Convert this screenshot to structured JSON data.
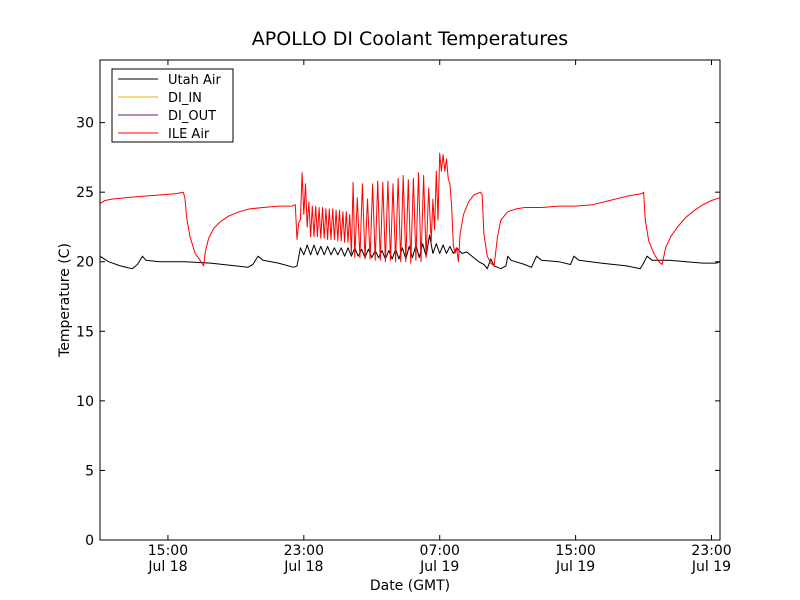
{
  "chart_data": {
    "type": "line",
    "title": "APOLLO DI Coolant Temperatures",
    "xlabel": "Date (GMT)",
    "ylabel": "Temperature (C)",
    "xlim": [
      11.0,
      47.5
    ],
    "ylim": [
      0,
      34.5
    ],
    "y_ticks": [
      0,
      5,
      10,
      15,
      20,
      25,
      30
    ],
    "x_ticks": [
      {
        "x": 15,
        "line1": "15:00",
        "line2": "Jul 18"
      },
      {
        "x": 23,
        "line1": "23:00",
        "line2": "Jul 18"
      },
      {
        "x": 31,
        "line1": "07:00",
        "line2": "Jul 19"
      },
      {
        "x": 39,
        "line1": "15:00",
        "line2": "Jul 19"
      },
      {
        "x": 47,
        "line1": "23:00",
        "line2": "Jul 19"
      }
    ],
    "legend_position": "top-left",
    "series": [
      {
        "name": "Utah Air",
        "color": "#000000",
        "points": [
          [
            11.0,
            20.4
          ],
          [
            11.5,
            20.0
          ],
          [
            12.2,
            19.7
          ],
          [
            12.9,
            19.5
          ],
          [
            13.2,
            19.8
          ],
          [
            13.5,
            20.4
          ],
          [
            13.7,
            20.1
          ],
          [
            14.5,
            20.0
          ],
          [
            16.0,
            20.0
          ],
          [
            17.5,
            19.9
          ],
          [
            19.0,
            19.7
          ],
          [
            19.7,
            19.6
          ],
          [
            20.0,
            19.8
          ],
          [
            20.3,
            20.4
          ],
          [
            20.6,
            20.1
          ],
          [
            21.5,
            19.9
          ],
          [
            22.4,
            19.6
          ],
          [
            22.6,
            19.7
          ],
          [
            22.8,
            21.0
          ],
          [
            23.0,
            20.5
          ],
          [
            23.2,
            21.2
          ],
          [
            23.4,
            20.5
          ],
          [
            23.6,
            21.2
          ],
          [
            23.8,
            20.5
          ],
          [
            24.0,
            21.1
          ],
          [
            24.2,
            20.5
          ],
          [
            24.4,
            21.1
          ],
          [
            24.6,
            20.5
          ],
          [
            24.8,
            21.0
          ],
          [
            25.0,
            20.5
          ],
          [
            25.2,
            21.0
          ],
          [
            25.4,
            20.4
          ],
          [
            25.6,
            21.0
          ],
          [
            25.8,
            20.4
          ],
          [
            26.0,
            21.0
          ],
          [
            26.2,
            20.4
          ],
          [
            26.4,
            20.9
          ],
          [
            26.6,
            20.3
          ],
          [
            26.8,
            20.9
          ],
          [
            27.0,
            20.3
          ],
          [
            27.2,
            20.8
          ],
          [
            27.4,
            20.3
          ],
          [
            27.6,
            20.8
          ],
          [
            27.8,
            20.2
          ],
          [
            28.0,
            20.8
          ],
          [
            28.2,
            20.2
          ],
          [
            28.4,
            20.9
          ],
          [
            28.6,
            20.2
          ],
          [
            28.8,
            21.0
          ],
          [
            29.0,
            20.2
          ],
          [
            29.2,
            21.1
          ],
          [
            29.4,
            20.3
          ],
          [
            29.6,
            21.2
          ],
          [
            29.8,
            20.3
          ],
          [
            30.0,
            21.3
          ],
          [
            30.2,
            20.4
          ],
          [
            30.4,
            21.9
          ],
          [
            30.6,
            20.6
          ],
          [
            30.8,
            21.3
          ],
          [
            31.0,
            20.6
          ],
          [
            31.2,
            21.2
          ],
          [
            31.4,
            20.6
          ],
          [
            31.6,
            21.1
          ],
          [
            31.8,
            20.6
          ],
          [
            32.0,
            21.0
          ],
          [
            32.3,
            20.6
          ],
          [
            32.6,
            20.7
          ],
          [
            32.9,
            20.4
          ],
          [
            33.3,
            20.0
          ],
          [
            33.6,
            19.8
          ],
          [
            33.8,
            19.5
          ],
          [
            34.0,
            20.2
          ],
          [
            34.2,
            19.7
          ],
          [
            34.6,
            19.5
          ],
          [
            34.9,
            19.7
          ],
          [
            35.0,
            20.4
          ],
          [
            35.2,
            20.1
          ],
          [
            36.0,
            19.8
          ],
          [
            36.4,
            19.6
          ],
          [
            36.7,
            20.4
          ],
          [
            37.0,
            20.1
          ],
          [
            38.0,
            20.0
          ],
          [
            38.7,
            19.8
          ],
          [
            38.9,
            20.4
          ],
          [
            39.2,
            20.1
          ],
          [
            40.5,
            19.9
          ],
          [
            42.0,
            19.7
          ],
          [
            42.8,
            19.5
          ],
          [
            43.0,
            19.9
          ],
          [
            43.2,
            20.4
          ],
          [
            43.5,
            20.1
          ],
          [
            44.5,
            20.1
          ],
          [
            45.5,
            20.0
          ],
          [
            46.5,
            19.9
          ],
          [
            47.3,
            19.9
          ],
          [
            47.5,
            20.0
          ]
        ]
      },
      {
        "name": "DI_IN",
        "color": "#f0b400",
        "points": []
      },
      {
        "name": "DI_OUT",
        "color": "#5a1e78",
        "points": []
      },
      {
        "name": "ILE Air",
        "color": "#ff0000",
        "points": [
          [
            11.0,
            24.2
          ],
          [
            11.3,
            24.4
          ],
          [
            11.7,
            24.5
          ],
          [
            12.5,
            24.6
          ],
          [
            13.5,
            24.7
          ],
          [
            14.5,
            24.8
          ],
          [
            15.5,
            24.9
          ],
          [
            15.9,
            25.0
          ],
          [
            16.0,
            24.6
          ],
          [
            16.1,
            23.2
          ],
          [
            16.3,
            21.8
          ],
          [
            16.6,
            20.6
          ],
          [
            16.9,
            20.1
          ],
          [
            17.1,
            19.7
          ],
          [
            17.2,
            20.7
          ],
          [
            17.4,
            21.7
          ],
          [
            17.7,
            22.4
          ],
          [
            18.1,
            22.9
          ],
          [
            18.6,
            23.3
          ],
          [
            19.2,
            23.6
          ],
          [
            19.8,
            23.8
          ],
          [
            20.6,
            23.9
          ],
          [
            21.5,
            24.0
          ],
          [
            22.3,
            24.0
          ],
          [
            22.5,
            24.1
          ],
          [
            22.6,
            21.6
          ],
          [
            22.7,
            22.8
          ],
          [
            22.8,
            23.0
          ],
          [
            22.9,
            26.4
          ],
          [
            23.0,
            23.4
          ],
          [
            23.1,
            25.6
          ],
          [
            23.2,
            22.5
          ],
          [
            23.3,
            24.3
          ],
          [
            23.4,
            21.8
          ],
          [
            23.5,
            24.0
          ],
          [
            23.6,
            21.8
          ],
          [
            23.7,
            24.0
          ],
          [
            23.8,
            21.8
          ],
          [
            23.9,
            23.9
          ],
          [
            24.0,
            21.7
          ],
          [
            24.1,
            23.9
          ],
          [
            24.2,
            21.7
          ],
          [
            24.3,
            23.8
          ],
          [
            24.4,
            21.6
          ],
          [
            24.5,
            23.8
          ],
          [
            24.6,
            21.6
          ],
          [
            24.7,
            23.8
          ],
          [
            24.8,
            21.6
          ],
          [
            24.9,
            23.7
          ],
          [
            25.0,
            21.5
          ],
          [
            25.1,
            23.7
          ],
          [
            25.2,
            21.5
          ],
          [
            25.3,
            23.6
          ],
          [
            25.4,
            21.4
          ],
          [
            25.5,
            23.6
          ],
          [
            25.6,
            21.4
          ],
          [
            25.7,
            23.4
          ],
          [
            25.8,
            20.6
          ],
          [
            25.9,
            25.7
          ],
          [
            26.0,
            20.3
          ],
          [
            26.15,
            24.6
          ],
          [
            26.3,
            20.3
          ],
          [
            26.45,
            25.6
          ],
          [
            26.6,
            20.2
          ],
          [
            26.75,
            24.5
          ],
          [
            26.9,
            20.2
          ],
          [
            27.05,
            25.6
          ],
          [
            27.2,
            20.1
          ],
          [
            27.35,
            25.8
          ],
          [
            27.5,
            20.1
          ],
          [
            27.65,
            25.7
          ],
          [
            27.8,
            20.0
          ],
          [
            27.95,
            25.8
          ],
          [
            28.1,
            20.1
          ],
          [
            28.25,
            25.6
          ],
          [
            28.4,
            20.0
          ],
          [
            28.55,
            26.0
          ],
          [
            28.7,
            20.0
          ],
          [
            28.85,
            26.2
          ],
          [
            29.0,
            20.0
          ],
          [
            29.15,
            25.9
          ],
          [
            29.3,
            19.9
          ],
          [
            29.45,
            26.0
          ],
          [
            29.6,
            20.1
          ],
          [
            29.75,
            26.4
          ],
          [
            29.9,
            20.0
          ],
          [
            30.05,
            26.2
          ],
          [
            30.2,
            20.3
          ],
          [
            30.35,
            25.3
          ],
          [
            30.5,
            21.4
          ],
          [
            30.6,
            24.5
          ],
          [
            30.7,
            22.3
          ],
          [
            30.8,
            26.5
          ],
          [
            30.9,
            23.0
          ],
          [
            31.0,
            27.8
          ],
          [
            31.1,
            26.5
          ],
          [
            31.2,
            27.7
          ],
          [
            31.3,
            26.5
          ],
          [
            31.4,
            27.4
          ],
          [
            31.5,
            26.0
          ],
          [
            31.6,
            25.6
          ],
          [
            31.7,
            24.0
          ],
          [
            31.8,
            21.2
          ],
          [
            31.9,
            20.6
          ],
          [
            32.0,
            21.0
          ],
          [
            32.1,
            20.0
          ],
          [
            32.2,
            22.0
          ],
          [
            32.4,
            23.4
          ],
          [
            32.7,
            24.3
          ],
          [
            33.0,
            24.8
          ],
          [
            33.4,
            25.0
          ],
          [
            33.5,
            24.8
          ],
          [
            33.6,
            22.0
          ],
          [
            33.8,
            20.4
          ],
          [
            34.0,
            19.9
          ],
          [
            34.2,
            19.7
          ],
          [
            34.4,
            21.8
          ],
          [
            34.6,
            23.0
          ],
          [
            35.0,
            23.6
          ],
          [
            35.5,
            23.8
          ],
          [
            36.0,
            23.9
          ],
          [
            37.0,
            23.9
          ],
          [
            38.0,
            24.0
          ],
          [
            39.0,
            24.0
          ],
          [
            40.0,
            24.1
          ],
          [
            41.0,
            24.4
          ],
          [
            42.0,
            24.7
          ],
          [
            42.9,
            24.9
          ],
          [
            43.0,
            25.0
          ],
          [
            43.1,
            23.0
          ],
          [
            43.3,
            21.5
          ],
          [
            43.6,
            20.6
          ],
          [
            43.9,
            20.0
          ],
          [
            44.1,
            19.8
          ],
          [
            44.3,
            21.0
          ],
          [
            44.6,
            21.8
          ],
          [
            45.0,
            22.5
          ],
          [
            45.5,
            23.2
          ],
          [
            46.0,
            23.7
          ],
          [
            46.5,
            24.1
          ],
          [
            47.0,
            24.4
          ],
          [
            47.5,
            24.6
          ]
        ]
      }
    ]
  }
}
